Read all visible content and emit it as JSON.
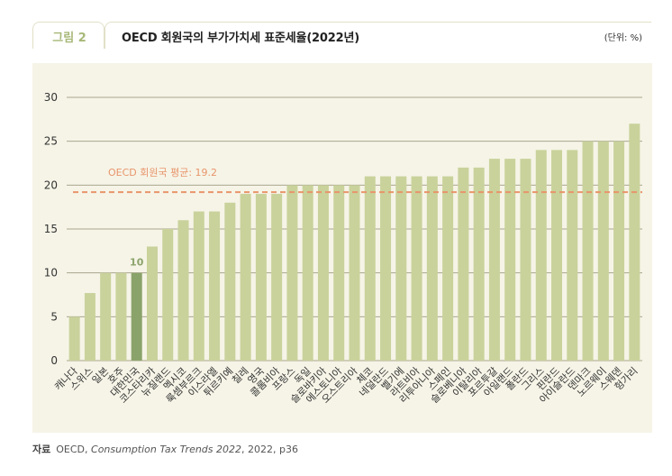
{
  "figure_label": "그림 2",
  "unit": "(단위: %)",
  "source": {
    "label": "자료",
    "prefix": "OECD, ",
    "title": "Consumption Tax Trends 2022",
    "suffix": ", 2022, p36"
  },
  "colors": {
    "bar": "#c9d29b",
    "highlight_bar": "#8aa36a",
    "highlight_label": "#8aa36a",
    "average_line": "#e8956b",
    "grid": "#a9a68e",
    "background": "#f6f4e7"
  },
  "chart_data": {
    "type": "bar",
    "title": "OECD 회원국의 부가가치세 표준세율(2022년)",
    "xlabel": "",
    "ylabel": "",
    "ylim": [
      0,
      30
    ],
    "yticks": [
      0,
      5,
      10,
      15,
      20,
      25,
      30
    ],
    "grid": true,
    "categories": [
      "캐나다",
      "스위스",
      "일본",
      "호주",
      "대한민국",
      "코스타리카",
      "뉴질랜드",
      "멕시코",
      "룩셈부르크",
      "이스라엘",
      "튀르키예",
      "칠레",
      "영국",
      "콜롬비아",
      "프랑스",
      "독일",
      "슬로바키아",
      "에스토니아",
      "오스트리아",
      "체코",
      "네덜란드",
      "벨기에",
      "라트비아",
      "리투아니아",
      "스페인",
      "슬로베니아",
      "이탈리아",
      "포르투갈",
      "아일랜드",
      "폴란드",
      "그리스",
      "핀란드",
      "아이슬란드",
      "덴마크",
      "노르웨이",
      "스웨덴",
      "헝가리"
    ],
    "values": [
      5,
      7.7,
      10,
      10,
      10,
      13,
      15,
      16,
      17,
      17,
      18,
      19,
      19,
      19,
      20,
      20,
      20,
      20,
      20,
      21,
      21,
      21,
      21,
      21,
      21,
      22,
      22,
      23,
      23,
      23,
      24,
      24,
      24,
      25,
      25,
      25,
      27
    ],
    "highlight": {
      "category": "대한민국",
      "label": "10"
    },
    "average": {
      "value": 19.2,
      "label": "OECD 회원국 평균: 19.2"
    }
  }
}
